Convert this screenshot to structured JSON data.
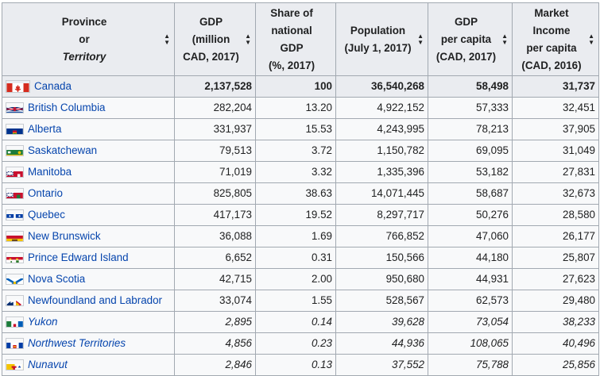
{
  "table": {
    "headers": [
      {
        "lines": [
          "Province",
          "or",
          "Territory"
        ],
        "italic_line": 2
      },
      {
        "lines": [
          "GDP",
          "(million",
          "CAD, 2017)"
        ]
      },
      {
        "lines": [
          "Share of",
          "national GDP",
          "(%, 2017)"
        ]
      },
      {
        "lines": [
          "Population",
          "(July 1, 2017)"
        ]
      },
      {
        "lines": [
          "GDP",
          "per capita",
          "(CAD, 2017)"
        ]
      },
      {
        "lines": [
          "Market",
          "Income",
          "per capita",
          "(CAD, 2016)"
        ]
      }
    ],
    "rows": [
      {
        "name": "Canada",
        "flag": "canada-flag-icon",
        "gdp": "2,137,528",
        "share": "100",
        "population": "36,540,268",
        "gdp_pc": "58,498",
        "income_pc": "31,737",
        "type": "total"
      },
      {
        "name": "British Columbia",
        "flag": "british-columbia-flag-icon",
        "gdp": "282,204",
        "share": "13.20",
        "population": "4,922,152",
        "gdp_pc": "57,333",
        "income_pc": "32,451",
        "type": "province"
      },
      {
        "name": "Alberta",
        "flag": "alberta-flag-icon",
        "gdp": "331,937",
        "share": "15.53",
        "population": "4,243,995",
        "gdp_pc": "78,213",
        "income_pc": "37,905",
        "type": "province"
      },
      {
        "name": "Saskatchewan",
        "flag": "saskatchewan-flag-icon",
        "gdp": "79,513",
        "share": "3.72",
        "population": "1,150,782",
        "gdp_pc": "69,095",
        "income_pc": "31,049",
        "type": "province"
      },
      {
        "name": "Manitoba",
        "flag": "manitoba-flag-icon",
        "gdp": "71,019",
        "share": "3.32",
        "population": "1,335,396",
        "gdp_pc": "53,182",
        "income_pc": "27,831",
        "type": "province"
      },
      {
        "name": "Ontario",
        "flag": "ontario-flag-icon",
        "gdp": "825,805",
        "share": "38.63",
        "population": "14,071,445",
        "gdp_pc": "58,687",
        "income_pc": "32,673",
        "type": "province"
      },
      {
        "name": "Quebec",
        "flag": "quebec-flag-icon",
        "gdp": "417,173",
        "share": "19.52",
        "population": "8,297,717",
        "gdp_pc": "50,276",
        "income_pc": "28,580",
        "type": "province"
      },
      {
        "name": "New Brunswick",
        "flag": "new-brunswick-flag-icon",
        "gdp": "36,088",
        "share": "1.69",
        "population": "766,852",
        "gdp_pc": "47,060",
        "income_pc": "26,177",
        "type": "province"
      },
      {
        "name": "Prince Edward Island",
        "flag": "prince-edward-island-flag-icon",
        "gdp": "6,652",
        "share": "0.31",
        "population": "150,566",
        "gdp_pc": "44,180",
        "income_pc": "25,807",
        "type": "province"
      },
      {
        "name": "Nova Scotia",
        "flag": "nova-scotia-flag-icon",
        "gdp": "42,715",
        "share": "2.00",
        "population": "950,680",
        "gdp_pc": "44,931",
        "income_pc": "27,623",
        "type": "province"
      },
      {
        "name": "Newfoundland and Labrador",
        "flag": "newfoundland-flag-icon",
        "gdp": "33,074",
        "share": "1.55",
        "population": "528,567",
        "gdp_pc": "62,573",
        "income_pc": "29,480",
        "type": "province"
      },
      {
        "name": "Yukon",
        "flag": "yukon-flag-icon",
        "gdp": "2,895",
        "share": "0.14",
        "population": "39,628",
        "gdp_pc": "73,054",
        "income_pc": "38,233",
        "type": "territory"
      },
      {
        "name": "Northwest Territories",
        "flag": "northwest-territories-flag-icon",
        "gdp": "4,856",
        "share": "0.23",
        "population": "44,936",
        "gdp_pc": "108,065",
        "income_pc": "40,496",
        "type": "territory"
      },
      {
        "name": "Nunavut",
        "flag": "nunavut-flag-icon",
        "gdp": "2,846",
        "share": "0.13",
        "population": "37,552",
        "gdp_pc": "75,788",
        "income_pc": "25,856",
        "type": "territory"
      }
    ]
  },
  "colors": {
    "link": "#0645ad",
    "header_bg": "#eaecf0",
    "cell_bg": "#f8f9fa",
    "border": "#a2a9b1"
  }
}
